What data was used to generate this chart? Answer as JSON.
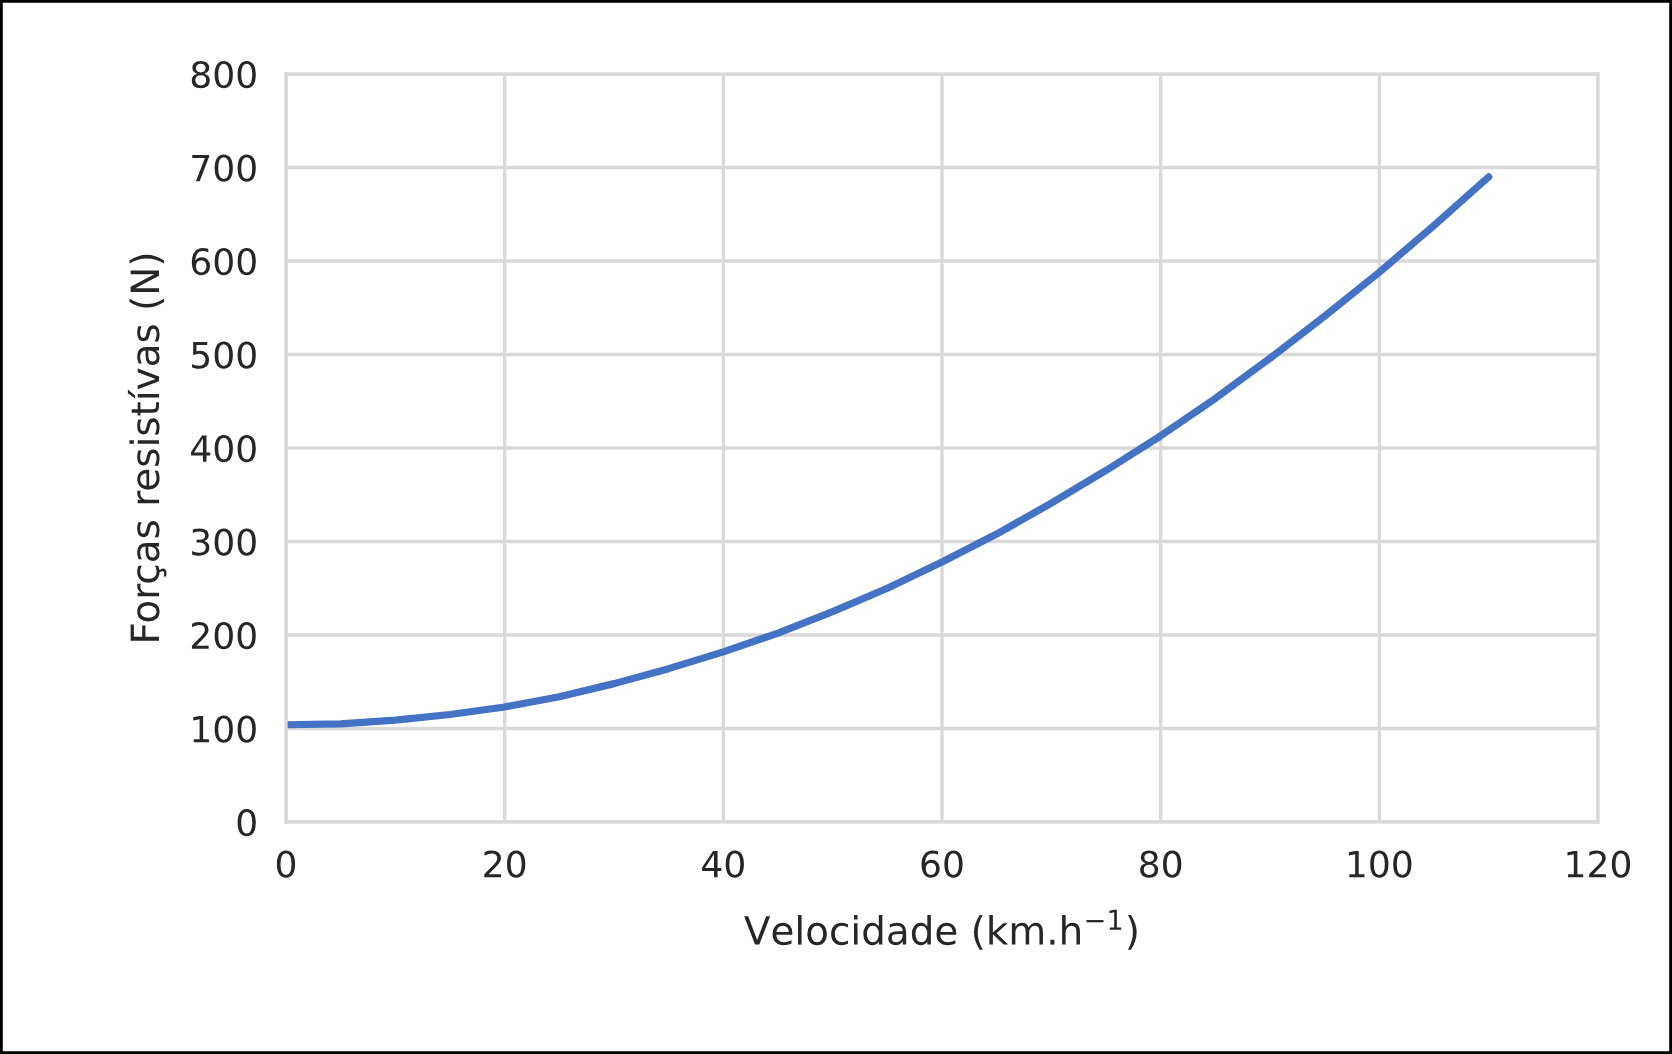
{
  "chart_data": {
    "type": "line",
    "xlabel": "Velocidade (km.h$^{−1}$)",
    "ylabel": "Forças resistívas (N)",
    "series": [
      {
        "color": "#4472c4",
        "x": [
          0,
          5,
          10,
          15,
          20,
          25,
          30,
          35,
          40,
          45,
          50,
          55,
          60,
          65,
          70,
          75,
          80,
          85,
          90,
          95,
          100,
          105,
          110
        ],
        "values": [
          104,
          105,
          109,
          115,
          123,
          134,
          148,
          164,
          182,
          202,
          225,
          250,
          278,
          308,
          341,
          376,
          413,
          453,
          496,
          541,
          588,
          638,
          690
        ]
      }
    ],
    "xlim": [
      0,
      120
    ],
    "xticks": [
      0,
      20,
      40,
      60,
      80,
      100,
      120
    ],
    "ylim": [
      0,
      800
    ],
    "yticks": [
      0,
      100,
      200,
      300,
      400,
      500,
      600,
      700,
      800
    ],
    "grid": true,
    "legend": false,
    "marker": "none",
    "line_style": "solid"
  }
}
